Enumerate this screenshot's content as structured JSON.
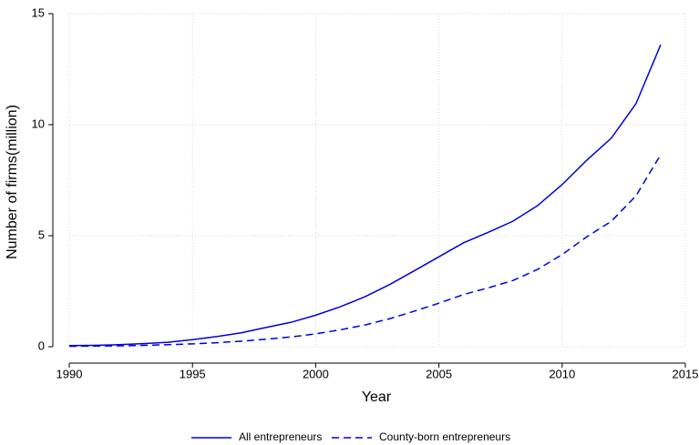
{
  "chart_data": {
    "type": "line",
    "x_label": "Year",
    "y_label": "Number of firms(million)",
    "x": [
      1990,
      1991,
      1992,
      1993,
      1994,
      1995,
      1996,
      1997,
      1998,
      1999,
      2000,
      2001,
      2002,
      2003,
      2004,
      2005,
      2006,
      2007,
      2008,
      2009,
      2010,
      2011,
      2012,
      2013,
      2014
    ],
    "series": [
      {
        "name": "All entrepreneurs",
        "color": "#0000dd",
        "style": "solid",
        "values": [
          0.05,
          0.06,
          0.09,
          0.14,
          0.2,
          0.32,
          0.46,
          0.63,
          0.87,
          1.1,
          1.42,
          1.8,
          2.25,
          2.8,
          3.42,
          4.05,
          4.68,
          5.15,
          5.65,
          6.35,
          7.3,
          8.4,
          9.4,
          10.95,
          13.6
        ]
      },
      {
        "name": "County-born entrepreneurs",
        "color": "#0000dd",
        "style": "dashed",
        "values": [
          0.02,
          0.03,
          0.04,
          0.06,
          0.09,
          0.13,
          0.18,
          0.25,
          0.34,
          0.44,
          0.58,
          0.76,
          0.98,
          1.26,
          1.6,
          1.96,
          2.35,
          2.65,
          2.98,
          3.48,
          4.15,
          4.95,
          5.65,
          6.8,
          8.65
        ]
      }
    ],
    "xlim": [
      1990,
      2015
    ],
    "xticks": [
      1990,
      1995,
      2000,
      2005,
      2010,
      2015
    ],
    "ylim": [
      0,
      15
    ],
    "yticks": [
      0,
      5,
      10,
      15
    ],
    "grid": true,
    "legend": "bottom"
  }
}
